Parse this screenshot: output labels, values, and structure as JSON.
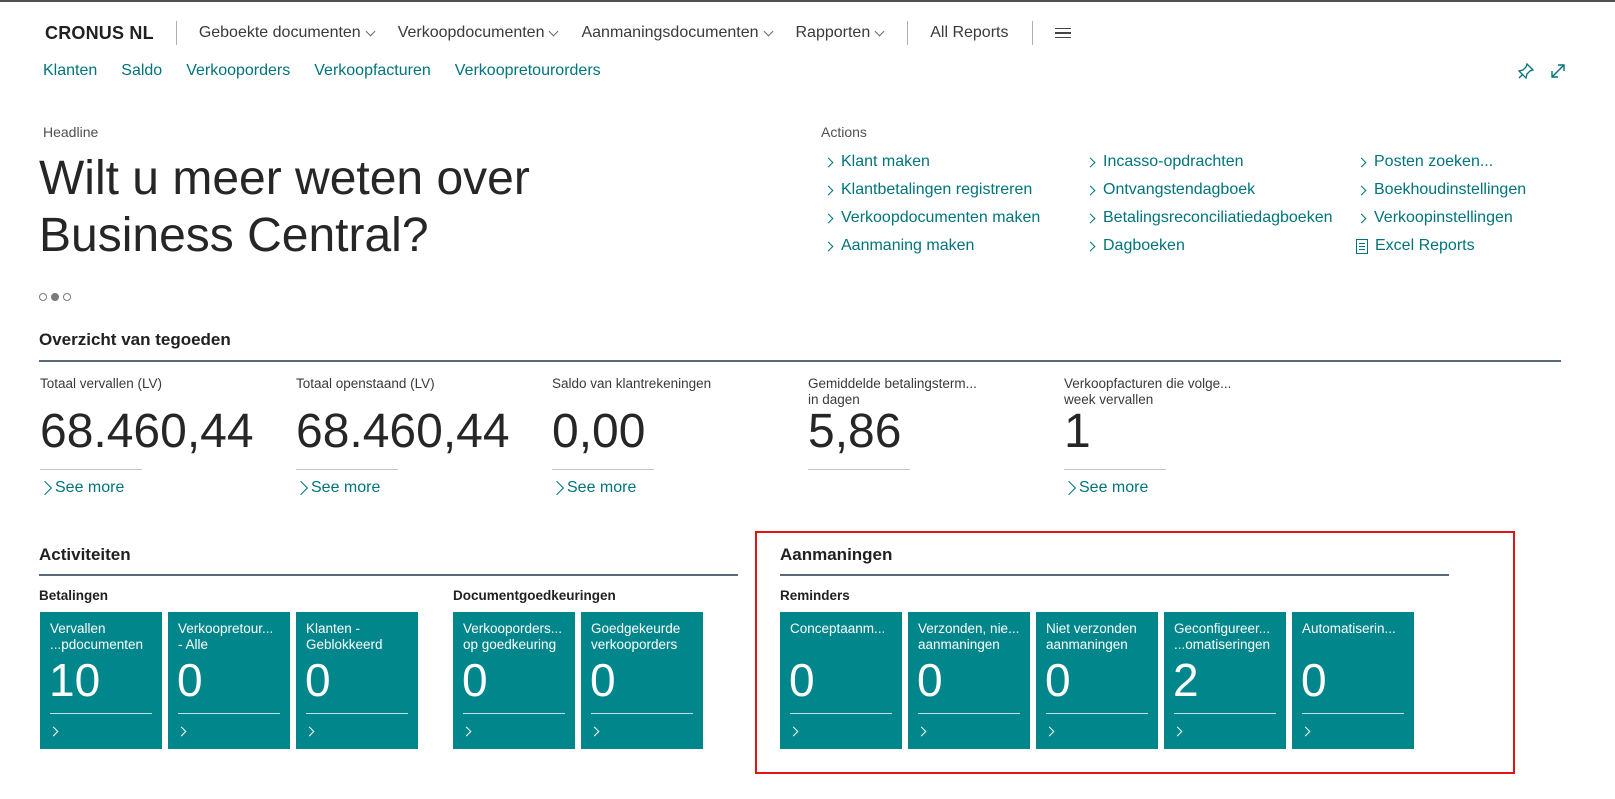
{
  "header": {
    "brand": "CRONUS NL",
    "menus": [
      "Geboekte documenten",
      "Verkoopdocumenten",
      "Aanmaningsdocumenten",
      "Rapporten"
    ],
    "all_reports": "All Reports",
    "icons": [
      "hamburger-menu-icon",
      "pin-icon",
      "expand-icon"
    ]
  },
  "subnav": [
    "Klanten",
    "Saldo",
    "Verkooporders",
    "Verkoopfacturen",
    "Verkoopretourorders"
  ],
  "headline": {
    "caption": "Headline",
    "line1": "Wilt u meer weten over",
    "line2": "Business Central?"
  },
  "actions": {
    "caption": "Actions",
    "col1": [
      "Klant maken",
      "Klantbetalingen registreren",
      "Verkoopdocumenten maken",
      "Aanmaning maken"
    ],
    "col2": [
      "Incasso-opdrachten",
      "Ontvangstendagboek",
      "Betalingsreconciliatiedagboeken",
      "Dagboeken"
    ],
    "col3": [
      "Posten zoeken...",
      "Boekhoudinstellingen",
      "Verkoopinstellingen",
      "Excel Reports"
    ]
  },
  "overview": {
    "title": "Overzicht van tegoeden",
    "see_more": "See more",
    "cues": [
      {
        "label1": "Totaal vervallen (LV)",
        "label2": "",
        "value": "68.460,44"
      },
      {
        "label1": "Totaal openstaand (LV)",
        "label2": "",
        "value": "68.460,44"
      },
      {
        "label1": "Saldo van klantrekeningen",
        "label2": "",
        "value": "0,00"
      },
      {
        "label1": "Gemiddelde betalingsterm...",
        "label2": "in dagen",
        "value": "5,86"
      },
      {
        "label1": "Verkoopfacturen die volge...",
        "label2": "week vervallen",
        "value": "1"
      }
    ]
  },
  "activiteiten": {
    "title": "Activiteiten",
    "betalingen": {
      "title": "Betalingen",
      "tiles": [
        {
          "l1": "Vervallen",
          "l2": "...pdocumenten",
          "value": "10"
        },
        {
          "l1": "Verkoopretour...",
          "l2": "- Alle",
          "value": "0"
        },
        {
          "l1": "Klanten -",
          "l2": "Geblokkeerd",
          "value": "0"
        }
      ]
    },
    "goedkeuringen": {
      "title": "Documentgoedkeuringen",
      "tiles": [
        {
          "l1": "Verkooporders...",
          "l2": "op goedkeuring",
          "value": "0"
        },
        {
          "l1": "Goedgekeurde",
          "l2": "verkooporders",
          "value": "0"
        }
      ]
    }
  },
  "aanmaningen": {
    "title": "Aanmaningen",
    "reminders": {
      "title": "Reminders",
      "tiles": [
        {
          "l1": "Conceptaanm...",
          "l2": "",
          "value": "0"
        },
        {
          "l1": "Verzonden, nie...",
          "l2": "aanmaningen",
          "value": "0"
        },
        {
          "l1": "Niet verzonden",
          "l2": "aanmaningen",
          "value": "0"
        },
        {
          "l1": "Geconfigureer...",
          "l2": "...omatiseringen",
          "value": "2"
        },
        {
          "l1": "Automatiserin...",
          "l2": "",
          "value": "0"
        }
      ]
    }
  },
  "colors": {
    "accent": "#00747a",
    "tile": "#00868b",
    "highlight": "#e01515"
  }
}
